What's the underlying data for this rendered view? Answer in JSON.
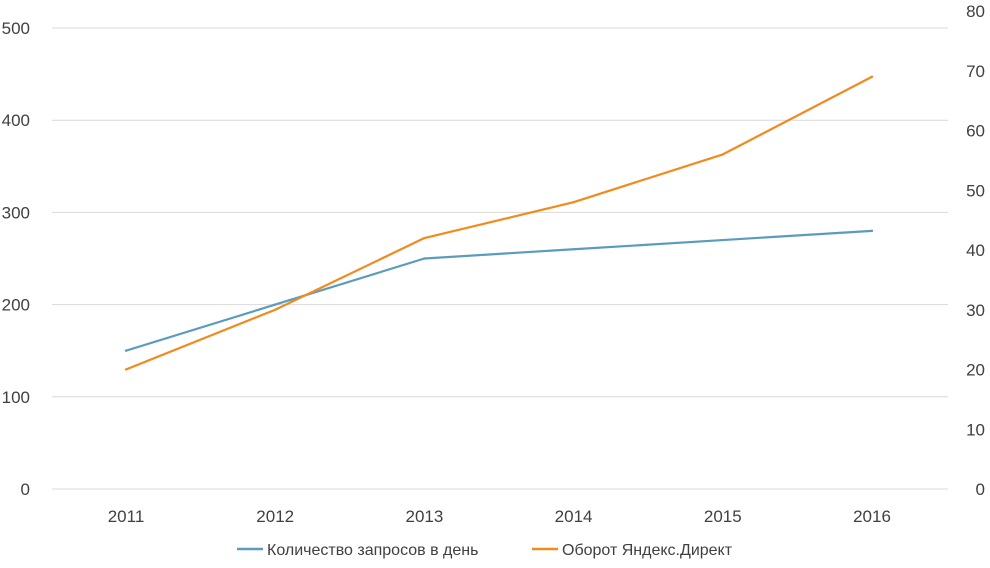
{
  "chart_data": {
    "type": "line",
    "title": "",
    "xlabel": "",
    "ylabel": "",
    "ylabel_right": "",
    "x": [
      "2011",
      "2012",
      "2013",
      "2014",
      "2015",
      "2016"
    ],
    "ylim": [
      0,
      500
    ],
    "yticks": [
      "0",
      "100",
      "200",
      "300",
      "400",
      "500"
    ],
    "ylim_right": [
      0,
      80
    ],
    "yticks_right": [
      "0",
      "10",
      "20",
      "30",
      "40",
      "50",
      "60",
      "70",
      "80"
    ],
    "grid": true,
    "legend": "bottom",
    "series": [
      {
        "name": "Количество запросов в день",
        "axis": "left",
        "color": "#5b9bbd",
        "values": [
          150,
          200,
          250,
          260,
          270,
          280
        ]
      },
      {
        "name": "Оборот Яндекс.Директ",
        "axis": "right",
        "color": "#f28a1e",
        "values": [
          20,
          30,
          42,
          48,
          56,
          69
        ]
      }
    ]
  }
}
